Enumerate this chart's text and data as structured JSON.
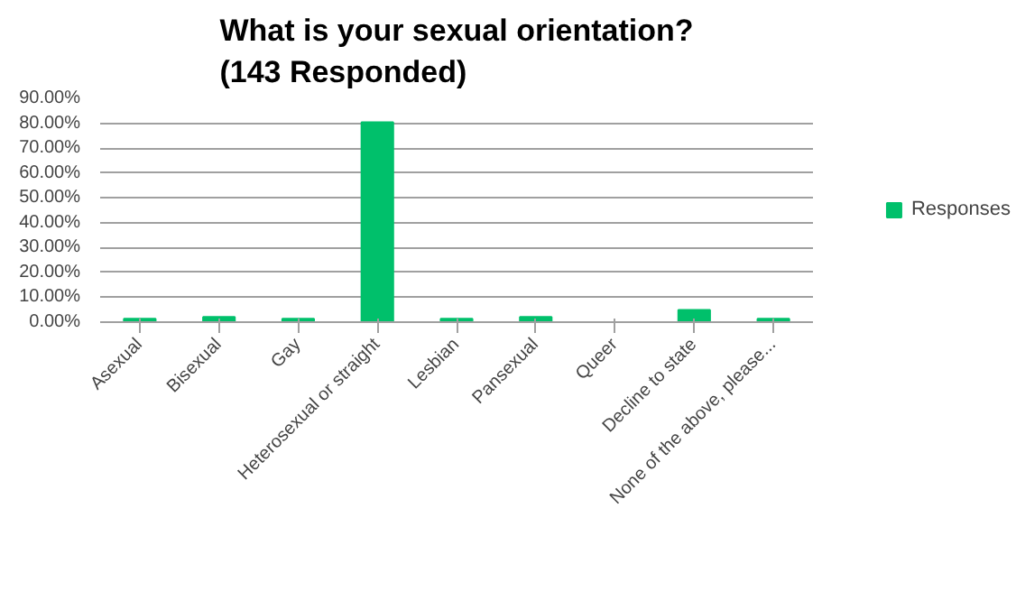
{
  "chart_data": {
    "type": "bar",
    "title": "What is your sexual orientation?\n(143 Responded)",
    "categories": [
      "Asexual",
      "Bisexual",
      "Gay",
      "Heterosexual or straight",
      "Lesbian",
      "Pansexual",
      "Queer",
      "Decline to state",
      "None of the above, please..."
    ],
    "series": [
      {
        "name": "Responses",
        "color": "#00c06b",
        "values": [
          1.4,
          2.1,
          1.4,
          80.4,
          1.4,
          2.1,
          0,
          4.9,
          1.4
        ]
      }
    ],
    "ylim": [
      0,
      90
    ],
    "yticks": [
      {
        "value": 0,
        "label": "0.00%"
      },
      {
        "value": 10,
        "label": "10.00%"
      },
      {
        "value": 20,
        "label": "20.00%"
      },
      {
        "value": 30,
        "label": "30.00%"
      },
      {
        "value": 40,
        "label": "40.00%"
      },
      {
        "value": 50,
        "label": "50.00%"
      },
      {
        "value": 60,
        "label": "60.00%"
      },
      {
        "value": 70,
        "label": "70.00%"
      },
      {
        "value": 80,
        "label": "80.00%"
      },
      {
        "value": 90,
        "label": "90.00%"
      }
    ],
    "grid": "y",
    "legend": "right"
  }
}
